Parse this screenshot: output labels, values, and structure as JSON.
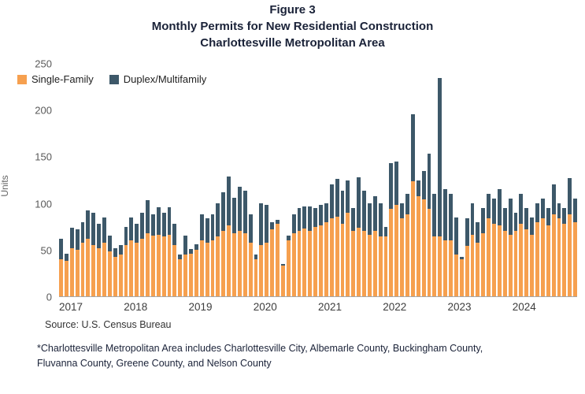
{
  "title": {
    "line1": "Figure 3",
    "line2": "Monthly Permits for New Residential Construction",
    "line3": "Charlottesville Metropolitan Area"
  },
  "source": "Source: U.S. Census Bureau",
  "footnote": {
    "line1": "*Charlottesville Metropolitan Area includes Charlottesville City, Albemarle County, Buckingham County,",
    "line2": "Fluvanna County, Greene County, and Nelson County"
  },
  "chart_data": {
    "type": "bar",
    "stacked": true,
    "title": "Monthly Permits for New Residential Construction, Charlottesville Metropolitan Area",
    "ylabel": "Units",
    "ylim": [
      0,
      250
    ],
    "yticks": [
      0,
      50,
      100,
      150,
      200,
      250
    ],
    "x_tick_labels": [
      "2017",
      "2018",
      "2019",
      "2020",
      "2021",
      "2022",
      "2023",
      "2024"
    ],
    "grid": false,
    "legend_position": "top-left-inside",
    "series": [
      {
        "name": "Single-Family",
        "color": "#F6A04F",
        "values": [
          40,
          38,
          52,
          50,
          58,
          62,
          55,
          52,
          58,
          48,
          42,
          45,
          55,
          60,
          58,
          62,
          68,
          65,
          66,
          64,
          66,
          55,
          40,
          45,
          46,
          50,
          60,
          58,
          60,
          64,
          70,
          76,
          68,
          70,
          68,
          58,
          40,
          55,
          58,
          72,
          78,
          33,
          60,
          68,
          70,
          73,
          70,
          75,
          76,
          80,
          84,
          86,
          78,
          90,
          70,
          74,
          70,
          66,
          70,
          64,
          64,
          94,
          98,
          84,
          88,
          124,
          108,
          104,
          94,
          64,
          64,
          60,
          60,
          45,
          40,
          54,
          66,
          58,
          68,
          84,
          78,
          76,
          70,
          66,
          70,
          78,
          72,
          66,
          80,
          84,
          76,
          88,
          84,
          78,
          88,
          80
        ]
      },
      {
        "name": "Duplex/Multifamily",
        "color": "#3D5869",
        "values": [
          22,
          8,
          22,
          22,
          22,
          30,
          35,
          26,
          27,
          17,
          10,
          10,
          20,
          25,
          20,
          28,
          35,
          23,
          30,
          26,
          30,
          23,
          5,
          20,
          5,
          6,
          28,
          26,
          28,
          36,
          42,
          53,
          38,
          48,
          46,
          30,
          5,
          45,
          40,
          8,
          4,
          2,
          5,
          20,
          25,
          24,
          27,
          20,
          22,
          20,
          36,
          40,
          36,
          35,
          25,
          54,
          44,
          34,
          38,
          36,
          11,
          49,
          47,
          16,
          22,
          72,
          17,
          31,
          59,
          46,
          171,
          55,
          50,
          40,
          2,
          30,
          34,
          22,
          27,
          26,
          27,
          39,
          25,
          39,
          20,
          32,
          23,
          19,
          20,
          21,
          19,
          32,
          16,
          17,
          39,
          25
        ]
      }
    ]
  }
}
